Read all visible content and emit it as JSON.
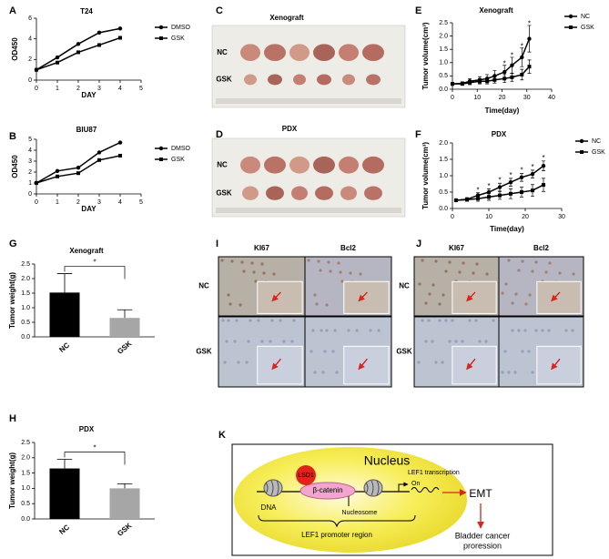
{
  "chart_data": [
    {
      "type": "line",
      "panel": "A",
      "title": "T24",
      "xlabel": "DAY",
      "ylabel": "OD450",
      "x": [
        0,
        1,
        2,
        3,
        4
      ],
      "xlim": [
        0,
        5
      ],
      "xticks": [
        0,
        1,
        2,
        3,
        4,
        5
      ],
      "ylim": [
        0,
        6
      ],
      "yticks": [
        0,
        2,
        4,
        6
      ],
      "series": [
        {
          "name": "DMSO",
          "color": "#000000",
          "marker": "circle",
          "values": [
            1,
            2.2,
            3.5,
            4.6,
            5.0
          ]
        },
        {
          "name": "GSK",
          "color": "#000000",
          "marker": "square",
          "values": [
            1,
            1.7,
            2.7,
            3.4,
            4.1
          ]
        }
      ]
    },
    {
      "type": "line",
      "panel": "B",
      "title": "BIU87",
      "xlabel": "DAY",
      "ylabel": "OD450",
      "x": [
        0,
        1,
        2,
        3,
        4
      ],
      "xlim": [
        0,
        5
      ],
      "xticks": [
        0,
        1,
        2,
        3,
        4,
        5
      ],
      "ylim": [
        0,
        5
      ],
      "yticks": [
        0,
        1,
        2,
        3,
        4,
        5
      ],
      "series": [
        {
          "name": "DMSO",
          "color": "#000000",
          "marker": "circle",
          "values": [
            1,
            2.1,
            2.4,
            3.8,
            4.7
          ]
        },
        {
          "name": "GSK",
          "color": "#000000",
          "marker": "square",
          "values": [
            1,
            1.6,
            1.9,
            3.1,
            3.5
          ]
        }
      ]
    },
    {
      "type": "line",
      "panel": "E",
      "title": "Xenograft",
      "xlabel": "Time(day)",
      "ylabel": "Tumor volume(cm³)",
      "x": [
        0,
        4,
        7,
        11,
        14,
        17,
        21,
        24,
        28,
        31
      ],
      "xlim": [
        0,
        40
      ],
      "xticks": [
        0,
        10,
        20,
        30,
        40
      ],
      "ylim": [
        0,
        2.5
      ],
      "yticks": [
        {
          "value": 0,
          "label": "0.0"
        },
        0.5,
        {
          "value": 1,
          "label": "1.0"
        },
        1.5,
        {
          "value": 2,
          "label": "2.0"
        },
        2.5
      ],
      "series": [
        {
          "name": "NC",
          "color": "#000000",
          "marker": "circle",
          "values": [
            0.2,
            0.22,
            0.3,
            0.35,
            0.4,
            0.5,
            0.65,
            0.9,
            1.2,
            1.9
          ],
          "errors": [
            0.05,
            0.06,
            0.1,
            0.12,
            0.15,
            0.2,
            0.25,
            0.3,
            0.35,
            0.5
          ]
        },
        {
          "name": "GSK",
          "color": "#000000",
          "marker": "square",
          "values": [
            0.2,
            0.2,
            0.25,
            0.3,
            0.3,
            0.35,
            0.4,
            0.45,
            0.55,
            0.85
          ],
          "errors": [
            0.04,
            0.05,
            0.08,
            0.1,
            0.1,
            0.12,
            0.15,
            0.15,
            0.2,
            0.25
          ]
        }
      ],
      "annotations": [
        {
          "text": "*",
          "x": 21,
          "y": 0.95
        },
        {
          "text": "*",
          "x": 24,
          "y": 1.25
        },
        {
          "text": "*",
          "x": 28,
          "y": 1.6
        },
        {
          "text": "*",
          "x": 31,
          "y": 2.45
        }
      ]
    },
    {
      "type": "line",
      "panel": "F",
      "title": "PDX",
      "xlabel": "Time(day)",
      "ylabel": "Tumor volume(cm³)",
      "x": [
        1,
        4,
        7,
        10,
        13,
        16,
        19,
        22,
        25
      ],
      "xlim": [
        0,
        30
      ],
      "xticks": [
        0,
        10,
        20,
        30
      ],
      "ylim": [
        0,
        2
      ],
      "yticks": [
        {
          "value": 0,
          "label": "0.0"
        },
        0.5,
        {
          "value": 1,
          "label": "1.0"
        },
        1.5,
        {
          "value": 2,
          "label": "2.0"
        }
      ],
      "series": [
        {
          "name": "NC",
          "color": "#000000",
          "marker": "circle",
          "values": [
            0.25,
            0.28,
            0.4,
            0.5,
            0.65,
            0.8,
            0.95,
            1.05,
            1.3
          ],
          "errors": [
            0.03,
            0.05,
            0.08,
            0.1,
            0.12,
            0.12,
            0.12,
            0.12,
            0.15
          ]
        },
        {
          "name": "GSK",
          "color": "#000000",
          "marker": "square",
          "values": [
            0.25,
            0.27,
            0.3,
            0.35,
            0.4,
            0.45,
            0.5,
            0.55,
            0.72
          ],
          "errors": [
            0.03,
            0.05,
            0.08,
            0.1,
            0.12,
            0.15,
            0.15,
            0.18,
            0.2
          ]
        }
      ],
      "annotations": [
        {
          "text": "*",
          "x": 7,
          "y": 0.55
        },
        {
          "text": "*",
          "x": 10,
          "y": 0.67
        },
        {
          "text": "*",
          "x": 13,
          "y": 0.85
        },
        {
          "text": "*",
          "x": 16,
          "y": 1.0
        },
        {
          "text": "*",
          "x": 19,
          "y": 1.15
        },
        {
          "text": "*",
          "x": 22,
          "y": 1.25
        },
        {
          "text": "*",
          "x": 25,
          "y": 1.53
        }
      ]
    },
    {
      "type": "bar",
      "panel": "G",
      "title": "Xenograft",
      "ylabel": "Tumor weight(g)",
      "categories": [
        "NC",
        "GSK"
      ],
      "values": [
        1.52,
        0.65
      ],
      "errors": [
        0.65,
        0.28
      ],
      "colors": [
        "#000000",
        "#a6a6a6"
      ],
      "ylim": [
        0,
        2.5
      ],
      "yticks": [
        {
          "value": 0,
          "label": "0.0"
        },
        0.5,
        {
          "value": 1,
          "label": "1.0"
        },
        1.5,
        {
          "value": 2,
          "label": "2.0"
        },
        2.5
      ],
      "significance": "*"
    },
    {
      "type": "bar",
      "panel": "H",
      "title": "PDX",
      "ylabel": "Tumor weight(g)",
      "categories": [
        "NC",
        "GSK"
      ],
      "values": [
        1.65,
        1.0
      ],
      "errors": [
        0.3,
        0.15
      ],
      "colors": [
        "#000000",
        "#a6a6a6"
      ],
      "ylim": [
        0,
        2.5
      ],
      "yticks": [
        {
          "value": 0,
          "label": "0.0"
        },
        0.5,
        {
          "value": 1,
          "label": "1.0"
        },
        1.5,
        {
          "value": 2,
          "label": "2.0"
        },
        2.5
      ],
      "significance": "*"
    }
  ],
  "photos": [
    {
      "panel": "C",
      "title": "Xenograft",
      "rows": [
        "NC",
        "GSK"
      ]
    },
    {
      "panel": "D",
      "title": "PDX",
      "rows": [
        "NC",
        "GSK"
      ]
    }
  ],
  "ihc": [
    {
      "panel": "I",
      "columns": [
        "KI67",
        "Bcl2"
      ],
      "rows": [
        "NC",
        "GSK"
      ]
    },
    {
      "panel": "J",
      "columns": [
        "KI67",
        "Bcl2"
      ],
      "rows": [
        "NC",
        "GSK"
      ]
    }
  ],
  "diagram": {
    "panel": "K",
    "nucleus": "Nucleus",
    "lsd1": "LSD1",
    "beta_catenin": "β-catenin",
    "nucleosome": "Nucleosome",
    "dna": "DNA",
    "transcription": "LEF1 transcription",
    "on": "On",
    "promoter": "LEF1 promoter region",
    "emt": "EMT",
    "outcome": [
      "Bladder cancer",
      "proression"
    ]
  }
}
